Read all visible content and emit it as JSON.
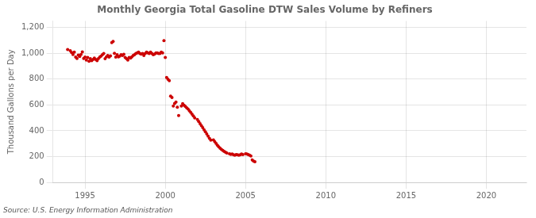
{
  "chart_data": {
    "type": "scatter",
    "title": "Monthly Georgia Total Gasoline DTW Sales Volume by Refiners",
    "ylabel": "Thousand Gallons per Day",
    "source": "Source: U.S. Energy Information Administration",
    "color": "#cc0000",
    "grid": true,
    "xlim": [
      1993.0,
      2022.5
    ],
    "ylim": [
      0,
      1250
    ],
    "xticks": [
      1995,
      2000,
      2005,
      2010,
      2015,
      2020
    ],
    "yticks": [
      0,
      200,
      400,
      600,
      800,
      {
        "value": 1000,
        "label": "1,000"
      },
      {
        "value": 1200,
        "label": "1,200"
      }
    ],
    "x": [
      1993.917,
      1994.083,
      1994.167,
      1994.25,
      1994.333,
      1994.417,
      1994.5,
      1994.583,
      1994.667,
      1994.75,
      1994.833,
      1994.917,
      1995.0,
      1995.083,
      1995.167,
      1995.25,
      1995.333,
      1995.417,
      1995.5,
      1995.583,
      1995.667,
      1995.75,
      1995.833,
      1995.917,
      1996.0,
      1996.083,
      1996.167,
      1996.25,
      1996.333,
      1996.417,
      1996.5,
      1996.583,
      1996.667,
      1996.75,
      1996.833,
      1996.917,
      1997.0,
      1997.083,
      1997.167,
      1997.25,
      1997.333,
      1997.417,
      1997.5,
      1997.583,
      1997.667,
      1997.75,
      1997.833,
      1997.917,
      1998.0,
      1998.083,
      1998.167,
      1998.25,
      1998.333,
      1998.417,
      1998.5,
      1998.583,
      1998.667,
      1998.75,
      1998.833,
      1998.917,
      1999.0,
      1999.083,
      1999.167,
      1999.25,
      1999.333,
      1999.417,
      1999.5,
      1999.583,
      1999.667,
      1999.75,
      1999.833,
      1999.917,
      2000.0,
      2000.083,
      2000.167,
      2000.25,
      2000.333,
      2000.417,
      2000.5,
      2000.583,
      2000.667,
      2000.75,
      2000.833,
      2001.0,
      2001.083,
      2001.167,
      2001.25,
      2001.333,
      2001.417,
      2001.5,
      2001.583,
      2001.667,
      2001.75,
      2001.833,
      2002.0,
      2002.083,
      2002.167,
      2002.25,
      2002.333,
      2002.417,
      2002.5,
      2002.583,
      2002.667,
      2002.75,
      2002.833,
      2003.0,
      2003.083,
      2003.167,
      2003.25,
      2003.333,
      2003.417,
      2003.5,
      2003.583,
      2003.667,
      2003.75,
      2003.833,
      2004.0,
      2004.083,
      2004.167,
      2004.25,
      2004.333,
      2004.417,
      2004.5,
      2004.583,
      2004.667,
      2004.75,
      2004.833,
      2005.0,
      2005.083,
      2005.167,
      2005.25,
      2005.333,
      2005.417,
      2005.5,
      2005.583
    ],
    "values": [
      1028,
      1020,
      1005,
      990,
      1008,
      970,
      960,
      985,
      975,
      990,
      1010,
      960,
      970,
      948,
      968,
      938,
      958,
      942,
      952,
      962,
      952,
      942,
      958,
      970,
      978,
      988,
      998,
      958,
      972,
      982,
      970,
      980,
      1082,
      1092,
      1000,
      970,
      988,
      972,
      978,
      988,
      982,
      992,
      968,
      958,
      948,
      968,
      962,
      972,
      982,
      988,
      998,
      1003,
      1008,
      998,
      993,
      998,
      983,
      998,
      1008,
      1003,
      998,
      1008,
      998,
      988,
      993,
      1003,
      1003,
      998,
      998,
      1008,
      1003,
      1098,
      968,
      812,
      798,
      788,
      668,
      658,
      592,
      612,
      622,
      582,
      518,
      592,
      610,
      598,
      588,
      578,
      568,
      555,
      542,
      528,
      515,
      500,
      488,
      472,
      455,
      440,
      425,
      408,
      392,
      375,
      358,
      342,
      328,
      330,
      315,
      302,
      288,
      276,
      265,
      255,
      248,
      240,
      235,
      228,
      222,
      218,
      220,
      214,
      212,
      216,
      214,
      212,
      214,
      220,
      216,
      222,
      220,
      216,
      212,
      205,
      175,
      165,
      160
    ]
  }
}
